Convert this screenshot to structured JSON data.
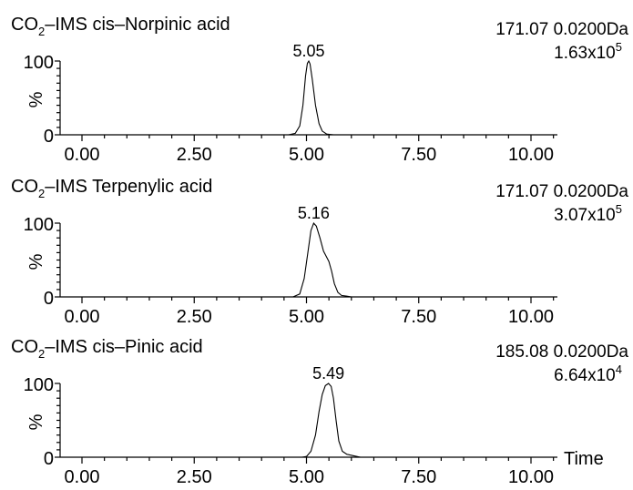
{
  "chart_data": [
    {
      "type": "line",
      "title_prefix": "CO",
      "title_sub": "2",
      "title_suffix": "–IMS cis–Norpinic acid",
      "ylabel": "%",
      "y_ticks": [
        "0",
        "100"
      ],
      "x_ticks": [
        "0.00",
        "2.50",
        "5.00",
        "7.50",
        "10.00"
      ],
      "xlim": [
        0,
        10.5
      ],
      "ylim": [
        0,
        100
      ],
      "peak_label": "5.05",
      "peak_x": 5.05,
      "mass_window": "171.07 0.0200Da",
      "intensity_base": "1.63x10",
      "intensity_exp": "5",
      "series": [
        {
          "x": [
            0,
            4.6,
            4.75,
            4.85,
            4.92,
            4.98,
            5.02,
            5.05,
            5.08,
            5.13,
            5.2,
            5.28,
            5.35,
            5.45,
            5.6,
            10.5
          ],
          "y": [
            0,
            0,
            2,
            12,
            40,
            80,
            97,
            100,
            96,
            75,
            40,
            15,
            5,
            1,
            0,
            0
          ]
        }
      ]
    },
    {
      "type": "line",
      "title_prefix": "CO",
      "title_sub": "2",
      "title_suffix": "–IMS Terpenylic acid",
      "ylabel": "%",
      "y_ticks": [
        "0",
        "100"
      ],
      "x_ticks": [
        "0.00",
        "2.50",
        "5.00",
        "7.50",
        "10.00"
      ],
      "xlim": [
        0,
        10.5
      ],
      "ylim": [
        0,
        100
      ],
      "peak_label": "5.16",
      "peak_x": 5.16,
      "mass_window": "171.07 0.0200Da",
      "intensity_base": "3.07x10",
      "intensity_exp": "5",
      "series": [
        {
          "x": [
            0,
            4.7,
            4.85,
            4.95,
            5.03,
            5.1,
            5.16,
            5.22,
            5.3,
            5.38,
            5.44,
            5.5,
            5.56,
            5.62,
            5.7,
            5.78,
            5.9,
            6.0,
            10.5
          ],
          "y": [
            0,
            0,
            4,
            25,
            60,
            90,
            100,
            96,
            80,
            62,
            55,
            48,
            35,
            18,
            6,
            2,
            1,
            0,
            0
          ]
        }
      ]
    },
    {
      "type": "line",
      "title_prefix": "CO",
      "title_sub": "2",
      "title_suffix": "–IMS cis–Pinic acid",
      "ylabel": "%",
      "y_ticks": [
        "0",
        "100"
      ],
      "x_ticks": [
        "0.00",
        "2.50",
        "5.00",
        "7.50",
        "10.00"
      ],
      "xlim": [
        0,
        10.5
      ],
      "ylim": [
        0,
        100
      ],
      "peak_label": "5.49",
      "peak_x": 5.49,
      "mass_window": "185.08 0.0200Da",
      "intensity_base": "6.64x10",
      "intensity_exp": "4",
      "xlabel": "Time",
      "series": [
        {
          "x": [
            0,
            4.9,
            5.0,
            5.1,
            5.2,
            5.28,
            5.35,
            5.42,
            5.49,
            5.55,
            5.6,
            5.66,
            5.72,
            5.8,
            5.9,
            6.05,
            6.2,
            10.5
          ],
          "y": [
            0,
            0,
            1,
            8,
            30,
            62,
            85,
            97,
            100,
            96,
            80,
            50,
            22,
            8,
            4,
            2,
            0,
            0
          ]
        }
      ]
    }
  ]
}
